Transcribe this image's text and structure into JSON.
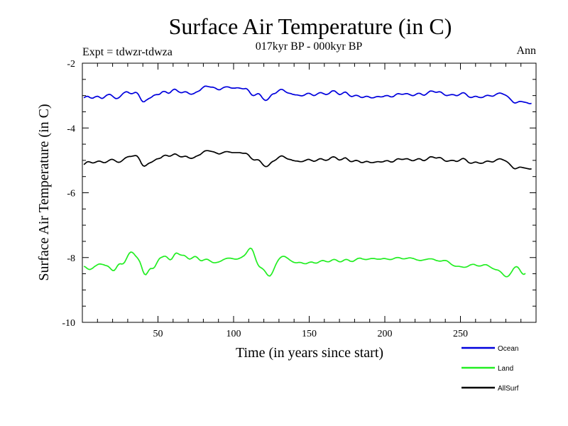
{
  "chart_data": {
    "type": "line",
    "title": "Surface Air Temperature (in C)",
    "subtitle": "017kyr BP - 000kyr BP",
    "expt_label": "Expt = tdwzr-tdwza",
    "season_label": "Ann",
    "xlabel": "Time (in years since start)",
    "ylabel": "Surface Air Temperature (in C)",
    "xlim": [
      0,
      300
    ],
    "ylim": [
      -10,
      -2
    ],
    "x_ticks": [
      50,
      100,
      150,
      200,
      250
    ],
    "x_tick_labels": [
      "50",
      "100",
      "150",
      "200",
      "250"
    ],
    "y_ticks": [
      -10,
      -8,
      -6,
      -4,
      -2
    ],
    "y_tick_labels": [
      "-10",
      "-8",
      "-6",
      "-4",
      "-2"
    ],
    "x_step": 1,
    "series": [
      {
        "name": "Ocean",
        "color": "#0000dd",
        "values": [
          -3.07,
          -3.04,
          -3.02,
          -3.03,
          -3.06,
          -3.08,
          -3.08,
          -3.05,
          -3.03,
          -3.02,
          -3.04,
          -3.07,
          -3.09,
          -3.07,
          -3.03,
          -2.99,
          -2.97,
          -2.96,
          -2.98,
          -3.02,
          -3.06,
          -3.09,
          -3.09,
          -3.07,
          -3.03,
          -2.98,
          -2.93,
          -2.9,
          -2.88,
          -2.89,
          -2.92,
          -2.94,
          -2.94,
          -2.92,
          -2.9,
          -2.91,
          -2.96,
          -3.05,
          -3.14,
          -3.19,
          -3.19,
          -3.15,
          -3.12,
          -3.09,
          -3.07,
          -3.04,
          -3.0,
          -2.98,
          -2.97,
          -2.97,
          -2.96,
          -2.92,
          -2.88,
          -2.87,
          -2.88,
          -2.91,
          -2.93,
          -2.91,
          -2.86,
          -2.82,
          -2.8,
          -2.82,
          -2.86,
          -2.89,
          -2.91,
          -2.91,
          -2.89,
          -2.88,
          -2.89,
          -2.92,
          -2.95,
          -2.96,
          -2.95,
          -2.93,
          -2.9,
          -2.88,
          -2.86,
          -2.83,
          -2.78,
          -2.74,
          -2.71,
          -2.71,
          -2.72,
          -2.73,
          -2.74,
          -2.74,
          -2.75,
          -2.77,
          -2.8,
          -2.82,
          -2.82,
          -2.79,
          -2.76,
          -2.74,
          -2.73,
          -2.73,
          -2.74,
          -2.76,
          -2.77,
          -2.77,
          -2.77,
          -2.76,
          -2.76,
          -2.77,
          -2.78,
          -2.79,
          -2.79,
          -2.78,
          -2.8,
          -2.85,
          -2.92,
          -2.98,
          -3.0,
          -2.99,
          -2.96,
          -2.94,
          -2.95,
          -3.0,
          -3.07,
          -3.12,
          -3.15,
          -3.14,
          -3.1,
          -3.04,
          -2.98,
          -2.95,
          -2.94,
          -2.92,
          -2.88,
          -2.84,
          -2.81,
          -2.81,
          -2.83,
          -2.87,
          -2.9,
          -2.92,
          -2.93,
          -2.94,
          -2.96,
          -2.97,
          -2.98,
          -2.98,
          -2.99,
          -3.0,
          -3.01,
          -3.0,
          -2.98,
          -2.95,
          -2.93,
          -2.93,
          -2.95,
          -2.98,
          -3.0,
          -2.99,
          -2.96,
          -2.93,
          -2.91,
          -2.91,
          -2.93,
          -2.95,
          -2.97,
          -2.96,
          -2.94,
          -2.9,
          -2.86,
          -2.85,
          -2.86,
          -2.9,
          -2.94,
          -2.97,
          -2.96,
          -2.93,
          -2.9,
          -2.89,
          -2.92,
          -2.97,
          -3.01,
          -3.03,
          -3.02,
          -3.0,
          -2.99,
          -3.0,
          -3.02,
          -3.05,
          -3.06,
          -3.05,
          -3.03,
          -3.02,
          -3.03,
          -3.05,
          -3.07,
          -3.07,
          -3.06,
          -3.04,
          -3.03,
          -3.03,
          -3.04,
          -3.04,
          -3.03,
          -3.01,
          -3.0,
          -3.0,
          -3.02,
          -3.04,
          -3.04,
          -3.02,
          -2.98,
          -2.95,
          -2.94,
          -2.95,
          -2.96,
          -2.96,
          -2.95,
          -2.94,
          -2.94,
          -2.96,
          -2.98,
          -3.0,
          -3.0,
          -2.98,
          -2.95,
          -2.93,
          -2.93,
          -2.95,
          -2.98,
          -2.99,
          -2.97,
          -2.93,
          -2.89,
          -2.86,
          -2.86,
          -2.87,
          -2.89,
          -2.9,
          -2.89,
          -2.88,
          -2.89,
          -2.92,
          -2.96,
          -2.99,
          -3.0,
          -2.99,
          -2.98,
          -2.97,
          -2.97,
          -2.98,
          -3.0,
          -3.0,
          -2.98,
          -2.95,
          -2.92,
          -2.91,
          -2.93,
          -2.97,
          -3.02,
          -3.05,
          -3.06,
          -3.05,
          -3.03,
          -3.02,
          -3.03,
          -3.05,
          -3.06,
          -3.06,
          -3.05,
          -3.02,
          -3.0,
          -2.99,
          -3.0,
          -3.01,
          -3.02,
          -3.01,
          -2.98,
          -2.95,
          -2.93,
          -2.92,
          -2.93,
          -2.95,
          -2.97,
          -2.99,
          -3.02,
          -3.06,
          -3.11,
          -3.16,
          -3.21,
          -3.23,
          -3.22,
          -3.2,
          -3.18,
          -3.18,
          -3.19,
          -3.2,
          -3.21,
          -3.22,
          -3.24,
          -3.25,
          -3.24
        ]
      },
      {
        "name": "Land",
        "color": "#22ee22",
        "values": [
          -8.27,
          -8.29,
          -8.33,
          -8.36,
          -8.37,
          -8.35,
          -8.32,
          -8.28,
          -8.25,
          -8.22,
          -8.2,
          -8.2,
          -8.21,
          -8.22,
          -8.24,
          -8.25,
          -8.27,
          -8.31,
          -8.36,
          -8.4,
          -8.4,
          -8.35,
          -8.27,
          -8.21,
          -8.19,
          -8.2,
          -8.19,
          -8.14,
          -8.05,
          -7.95,
          -7.87,
          -7.83,
          -7.84,
          -7.88,
          -7.94,
          -7.99,
          -8.05,
          -8.13,
          -8.26,
          -8.41,
          -8.51,
          -8.53,
          -8.47,
          -8.39,
          -8.34,
          -8.34,
          -8.33,
          -8.28,
          -8.19,
          -8.1,
          -8.03,
          -8.0,
          -7.98,
          -7.96,
          -7.96,
          -7.99,
          -8.04,
          -8.07,
          -8.05,
          -7.98,
          -7.9,
          -7.86,
          -7.87,
          -7.9,
          -7.92,
          -7.93,
          -7.93,
          -7.95,
          -7.99,
          -8.03,
          -8.05,
          -8.03,
          -8.0,
          -7.97,
          -7.97,
          -8.0,
          -8.05,
          -8.09,
          -8.1,
          -8.08,
          -8.06,
          -8.05,
          -8.06,
          -8.09,
          -8.12,
          -8.15,
          -8.16,
          -8.16,
          -8.15,
          -8.14,
          -8.12,
          -8.1,
          -8.07,
          -8.05,
          -8.03,
          -8.02,
          -8.02,
          -8.02,
          -8.03,
          -8.04,
          -8.05,
          -8.05,
          -8.04,
          -8.02,
          -8.0,
          -7.97,
          -7.94,
          -7.89,
          -7.82,
          -7.75,
          -7.71,
          -7.73,
          -7.82,
          -7.96,
          -8.1,
          -8.21,
          -8.28,
          -8.31,
          -8.34,
          -8.38,
          -8.44,
          -8.51,
          -8.56,
          -8.57,
          -8.52,
          -8.43,
          -8.32,
          -8.21,
          -8.12,
          -8.05,
          -8.0,
          -7.97,
          -7.96,
          -7.97,
          -8.0,
          -8.03,
          -8.07,
          -8.1,
          -8.13,
          -8.15,
          -8.16,
          -8.16,
          -8.15,
          -8.15,
          -8.16,
          -8.18,
          -8.19,
          -8.19,
          -8.17,
          -8.15,
          -8.14,
          -8.14,
          -8.16,
          -8.17,
          -8.17,
          -8.15,
          -8.12,
          -8.1,
          -8.09,
          -8.1,
          -8.12,
          -8.13,
          -8.13,
          -8.11,
          -8.08,
          -8.06,
          -8.06,
          -8.08,
          -8.11,
          -8.13,
          -8.13,
          -8.11,
          -8.08,
          -8.06,
          -8.06,
          -8.08,
          -8.11,
          -8.12,
          -8.12,
          -8.09,
          -8.06,
          -8.03,
          -8.02,
          -8.02,
          -8.04,
          -8.05,
          -8.06,
          -8.06,
          -8.05,
          -8.04,
          -8.03,
          -8.03,
          -8.03,
          -8.04,
          -8.05,
          -8.05,
          -8.05,
          -8.04,
          -8.03,
          -8.03,
          -8.04,
          -8.05,
          -8.06,
          -8.06,
          -8.05,
          -8.03,
          -8.01,
          -8.0,
          -8.0,
          -8.01,
          -8.03,
          -8.04,
          -8.04,
          -8.03,
          -8.02,
          -8.01,
          -8.01,
          -8.02,
          -8.03,
          -8.05,
          -8.07,
          -8.08,
          -8.09,
          -8.09,
          -8.08,
          -8.07,
          -8.06,
          -8.05,
          -8.04,
          -8.04,
          -8.04,
          -8.05,
          -8.07,
          -8.09,
          -8.1,
          -8.11,
          -8.11,
          -8.1,
          -8.09,
          -8.09,
          -8.1,
          -8.13,
          -8.17,
          -8.21,
          -8.24,
          -8.26,
          -8.27,
          -8.27,
          -8.27,
          -8.28,
          -8.29,
          -8.3,
          -8.3,
          -8.29,
          -8.27,
          -8.24,
          -8.22,
          -8.21,
          -8.21,
          -8.23,
          -8.25,
          -8.26,
          -8.26,
          -8.25,
          -8.23,
          -8.22,
          -8.22,
          -8.24,
          -8.27,
          -8.3,
          -8.33,
          -8.35,
          -8.37,
          -8.38,
          -8.39,
          -8.42,
          -8.46,
          -8.51,
          -8.56,
          -8.59,
          -8.59,
          -8.56,
          -8.5,
          -8.43,
          -8.35,
          -8.3,
          -8.28,
          -8.3,
          -8.36,
          -8.44,
          -8.5,
          -8.52,
          -8.49
        ]
      },
      {
        "name": "AllSurf",
        "color": "#000000",
        "values": [
          -5.13,
          -5.09,
          -5.05,
          -5.04,
          -5.05,
          -5.07,
          -5.08,
          -5.07,
          -5.05,
          -5.03,
          -5.02,
          -5.03,
          -5.05,
          -5.07,
          -5.07,
          -5.05,
          -5.02,
          -4.99,
          -4.97,
          -4.97,
          -4.99,
          -5.02,
          -5.05,
          -5.06,
          -5.05,
          -5.02,
          -4.98,
          -4.94,
          -4.91,
          -4.89,
          -4.88,
          -4.88,
          -4.87,
          -4.86,
          -4.85,
          -4.86,
          -4.91,
          -4.99,
          -5.09,
          -5.16,
          -5.18,
          -5.16,
          -5.12,
          -5.09,
          -5.07,
          -5.05,
          -5.02,
          -4.99,
          -4.96,
          -4.95,
          -4.94,
          -4.92,
          -4.88,
          -4.85,
          -4.84,
          -4.85,
          -4.87,
          -4.87,
          -4.85,
          -4.82,
          -4.8,
          -4.81,
          -4.84,
          -4.87,
          -4.89,
          -4.89,
          -4.88,
          -4.87,
          -4.88,
          -4.91,
          -4.93,
          -4.94,
          -4.93,
          -4.91,
          -4.88,
          -4.86,
          -4.84,
          -4.82,
          -4.78,
          -4.74,
          -4.71,
          -4.7,
          -4.7,
          -4.71,
          -4.72,
          -4.73,
          -4.74,
          -4.76,
          -4.78,
          -4.8,
          -4.8,
          -4.78,
          -4.76,
          -4.74,
          -4.73,
          -4.73,
          -4.74,
          -4.75,
          -4.76,
          -4.76,
          -4.76,
          -4.76,
          -4.76,
          -4.76,
          -4.77,
          -4.78,
          -4.78,
          -4.78,
          -4.8,
          -4.84,
          -4.9,
          -4.95,
          -4.98,
          -4.99,
          -4.98,
          -4.98,
          -5.0,
          -5.05,
          -5.11,
          -5.16,
          -5.19,
          -5.19,
          -5.16,
          -5.11,
          -5.06,
          -5.03,
          -5.01,
          -4.98,
          -4.94,
          -4.9,
          -4.87,
          -4.86,
          -4.88,
          -4.91,
          -4.94,
          -4.96,
          -4.97,
          -4.98,
          -5.0,
          -5.01,
          -5.02,
          -5.02,
          -5.03,
          -5.04,
          -5.04,
          -5.03,
          -5.01,
          -4.99,
          -4.97,
          -4.97,
          -4.99,
          -5.01,
          -5.03,
          -5.02,
          -5.0,
          -4.97,
          -4.95,
          -4.95,
          -4.97,
          -4.99,
          -5.0,
          -4.99,
          -4.97,
          -4.93,
          -4.9,
          -4.89,
          -4.9,
          -4.93,
          -4.97,
          -4.99,
          -4.98,
          -4.96,
          -4.93,
          -4.92,
          -4.95,
          -4.99,
          -5.03,
          -5.04,
          -5.03,
          -5.01,
          -5.0,
          -5.01,
          -5.03,
          -5.06,
          -5.07,
          -5.06,
          -5.04,
          -5.03,
          -5.04,
          -5.06,
          -5.07,
          -5.07,
          -5.06,
          -5.05,
          -5.04,
          -5.04,
          -5.05,
          -5.05,
          -5.04,
          -5.02,
          -5.01,
          -5.01,
          -5.03,
          -5.05,
          -5.05,
          -5.03,
          -4.99,
          -4.96,
          -4.95,
          -4.96,
          -4.97,
          -4.97,
          -4.96,
          -4.95,
          -4.95,
          -4.97,
          -4.99,
          -5.01,
          -5.01,
          -4.99,
          -4.97,
          -4.95,
          -4.95,
          -4.97,
          -5.0,
          -5.01,
          -4.99,
          -4.96,
          -4.92,
          -4.89,
          -4.89,
          -4.9,
          -4.92,
          -4.93,
          -4.92,
          -4.91,
          -4.92,
          -4.95,
          -4.99,
          -5.02,
          -5.03,
          -5.02,
          -5.01,
          -5.0,
          -5.0,
          -5.01,
          -5.03,
          -5.03,
          -5.01,
          -4.98,
          -4.95,
          -4.94,
          -4.96,
          -5.0,
          -5.05,
          -5.08,
          -5.09,
          -5.08,
          -5.06,
          -5.05,
          -5.06,
          -5.08,
          -5.09,
          -5.09,
          -5.08,
          -5.05,
          -5.03,
          -5.02,
          -5.03,
          -5.04,
          -5.05,
          -5.04,
          -5.01,
          -4.98,
          -4.96,
          -4.95,
          -4.96,
          -4.98,
          -5.0,
          -5.02,
          -5.05,
          -5.09,
          -5.14,
          -5.19,
          -5.24,
          -5.26,
          -5.25,
          -5.23,
          -5.21,
          -5.21,
          -5.22,
          -5.23,
          -5.24,
          -5.25,
          -5.26,
          -5.27,
          -5.26
        ]
      }
    ],
    "legend": {
      "placement": "bottom-right",
      "entries": [
        {
          "label": "Ocean",
          "color": "#0000dd"
        },
        {
          "label": "Land",
          "color": "#22ee22"
        },
        {
          "label": "AllSurf",
          "color": "#000000"
        }
      ]
    },
    "grid": false
  }
}
